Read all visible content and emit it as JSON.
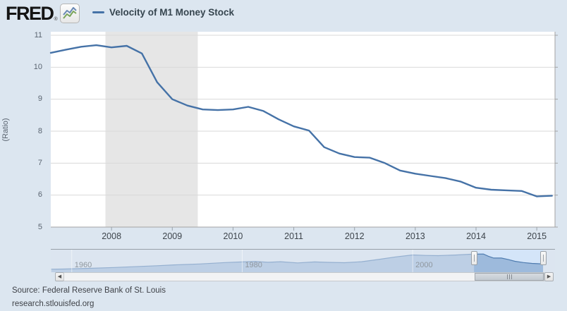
{
  "header": {
    "logo_text": "FRED",
    "logo_reg": "®",
    "legend": {
      "label": "Velocity of M1 Money Stock",
      "color": "#4572a7"
    }
  },
  "chart_data": {
    "type": "line",
    "title": "Velocity of M1 Money Stock",
    "xlabel": "",
    "ylabel": "(Ratio)",
    "ylim": [
      5,
      11
    ],
    "xlim": [
      2007.0,
      2015.3
    ],
    "yticks": [
      11,
      10,
      9,
      8,
      7,
      6,
      5
    ],
    "xticks": [
      2008,
      2009,
      2010,
      2011,
      2012,
      2013,
      2014,
      2015
    ],
    "grid": true,
    "legend_position": "top",
    "recession_band": {
      "start": 2007.9,
      "end": 2009.42,
      "color": "#e6e6e6"
    },
    "series": [
      {
        "name": "Velocity of M1 Money Stock",
        "color": "#4572a7",
        "x": [
          2007.0,
          2007.25,
          2007.5,
          2007.75,
          2008.0,
          2008.25,
          2008.5,
          2008.75,
          2009.0,
          2009.25,
          2009.5,
          2009.75,
          2010.0,
          2010.25,
          2010.5,
          2010.75,
          2011.0,
          2011.25,
          2011.5,
          2011.75,
          2012.0,
          2012.25,
          2012.5,
          2012.75,
          2013.0,
          2013.25,
          2013.5,
          2013.75,
          2014.0,
          2014.25,
          2014.5,
          2014.75,
          2015.0,
          2015.25
        ],
        "y": [
          10.45,
          10.55,
          10.64,
          10.69,
          10.62,
          10.67,
          10.43,
          9.53,
          9.0,
          8.8,
          8.68,
          8.66,
          8.68,
          8.76,
          8.63,
          8.37,
          8.15,
          8.02,
          7.5,
          7.3,
          7.19,
          7.17,
          7.0,
          6.77,
          6.67,
          6.6,
          6.53,
          6.42,
          6.23,
          6.17,
          6.15,
          6.13,
          5.96,
          5.98
        ]
      }
    ]
  },
  "navigator": {
    "xticks": [
      1960,
      1980,
      2000
    ],
    "xlim": [
      1957.54,
      2016.7
    ],
    "ylim": [
      2.0,
      12.77
    ],
    "selection": {
      "start": 2007.2,
      "end": 2015.3
    },
    "colors": {
      "area_fill": "#8fafd4",
      "area_line": "#4f7cb0",
      "selection_bg": "#d4e5f9"
    },
    "series": {
      "name": "Velocity of M1 Money Stock (full history)",
      "x": [
        1957.6,
        1959,
        1962,
        1965,
        1968,
        1970,
        1972,
        1975,
        1978,
        1980,
        1981.5,
        1983,
        1984.5,
        1986.5,
        1988.5,
        1990,
        1992,
        1994,
        1996,
        1998,
        2000,
        2001.5,
        2003,
        2005,
        2007,
        2008.3,
        2008.9,
        2009.5,
        2010.4,
        2011.2,
        2012,
        2013,
        2014,
        2015.3
      ],
      "y": [
        3.45,
        3.5,
        3.85,
        4.25,
        4.75,
        5.1,
        5.5,
        5.95,
        6.6,
        6.9,
        7.15,
        6.75,
        7.0,
        6.45,
        6.9,
        6.7,
        6.55,
        7.0,
        8.1,
        9.3,
        10.25,
        10.0,
        9.9,
        10.2,
        10.6,
        10.7,
        9.6,
        8.75,
        8.75,
        8.1,
        7.2,
        6.6,
        6.2,
        5.97
      ]
    }
  },
  "scrollbar": {
    "left_arrow": "◀",
    "right_arrow": "▶"
  },
  "footer": {
    "source": "Source: Federal Reserve Bank of St. Louis",
    "site": "research.stlouisfed.org"
  }
}
